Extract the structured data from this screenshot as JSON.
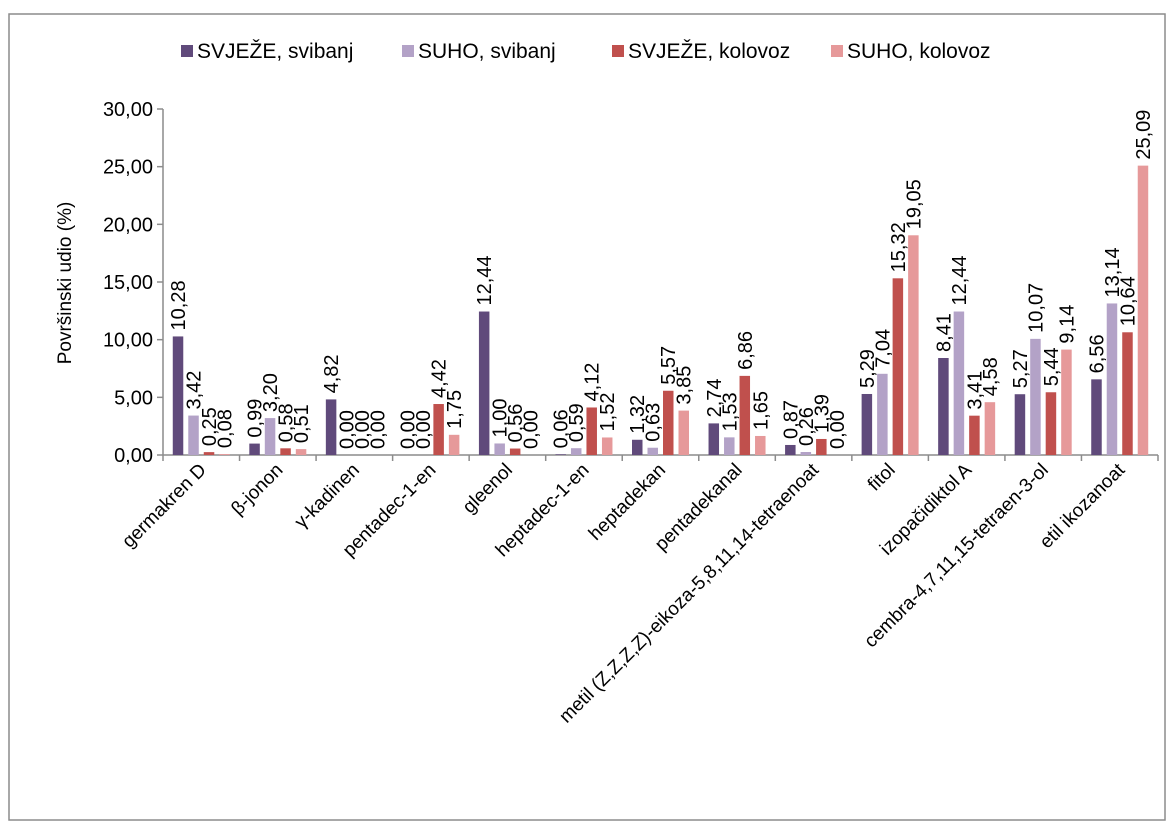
{
  "chart_data": {
    "type": "bar",
    "title": "",
    "xlabel": "",
    "ylabel": "Površinski udio (%)",
    "ylim": [
      0,
      30
    ],
    "yticks": [
      "0,00",
      "5,00",
      "10,00",
      "15,00",
      "20,00",
      "25,00",
      "30,00"
    ],
    "grid": false,
    "legend_position": "top",
    "categories": [
      "germakren D",
      "β-jonon",
      "γ-kadinen",
      "pentadec-1-en",
      "gleenol",
      "heptadec-1-en",
      "heptadekan",
      "pentadekanal",
      "metil (Z,Z,Z,Z)-eikoza-5,8,11,14-tetraenoat",
      "fitol",
      "izopačidiktol A",
      "cembra-4,7,11,15-tetraen-3-ol",
      "etil ikozanoat"
    ],
    "series": [
      {
        "name": "SVJEŽE, svibanj",
        "color": "#604a7b",
        "values": [
          10.28,
          0.99,
          4.82,
          0.0,
          12.44,
          0.06,
          1.32,
          2.74,
          0.87,
          5.29,
          8.41,
          5.27,
          6.56
        ],
        "labels": [
          "10,28",
          "0,99",
          "4,82",
          "0,00",
          "12,44",
          "0,06",
          "1,32",
          "2,74",
          "0,87",
          "5,29",
          "8,41",
          "5,27",
          "6,56"
        ]
      },
      {
        "name": "SUHO, svibanj",
        "color": "#b3a2c7",
        "values": [
          3.42,
          3.2,
          0.0,
          0.0,
          1.0,
          0.59,
          0.63,
          1.53,
          0.26,
          7.04,
          12.44,
          10.07,
          13.14
        ],
        "labels": [
          "3,42",
          "3,20",
          "0,00",
          "0,00",
          "1,00",
          "0,59",
          "0,63",
          "1,53",
          "0,26",
          "7,04",
          "12,44",
          "10,07",
          "13,14"
        ]
      },
      {
        "name": "SVJEŽE, kolovoz",
        "color": "#c0504d",
        "values": [
          0.25,
          0.58,
          0.0,
          4.42,
          0.56,
          4.12,
          5.57,
          6.86,
          1.39,
          15.32,
          3.41,
          5.44,
          10.64
        ],
        "labels": [
          "0,25",
          "0,58",
          "0,00",
          "4,42",
          "0,56",
          "4,12",
          "5,57",
          "6,86",
          "1,39",
          "15,32",
          "3,41",
          "5,44",
          "10,64"
        ]
      },
      {
        "name": "SUHO, kolovoz",
        "color": "#e6999a",
        "values": [
          0.08,
          0.51,
          0.0,
          1.75,
          0.0,
          1.52,
          3.85,
          1.65,
          0.0,
          19.05,
          4.58,
          9.14,
          25.09
        ],
        "labels": [
          "0,08",
          "0,51",
          "0,00",
          "1,75",
          "0,00",
          "1,52",
          "3,85",
          "1,65",
          "0,00",
          "19,05",
          "4,58",
          "9,14",
          "25,09"
        ]
      }
    ]
  }
}
